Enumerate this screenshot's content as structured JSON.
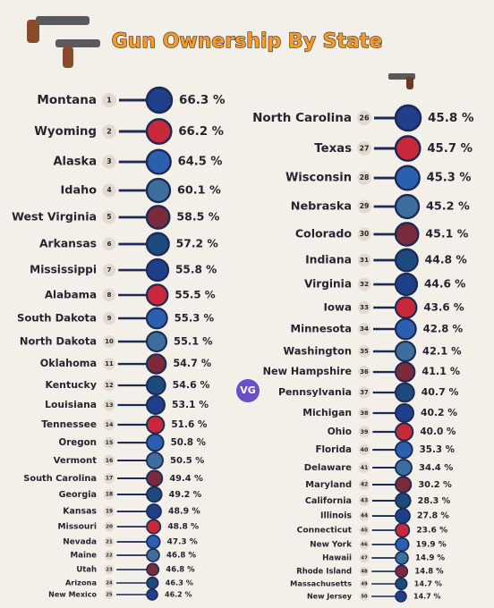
{
  "title": "Gun Ownership By State",
  "logo": "VG",
  "left": [
    {
      "name": "Montana",
      "rank": 1,
      "value": "66.3 %"
    },
    {
      "name": "Wyoming",
      "rank": 2,
      "value": "66.2 %"
    },
    {
      "name": "Alaska",
      "rank": 3,
      "value": "64.5 %"
    },
    {
      "name": "Idaho",
      "rank": 4,
      "value": "60.1 %"
    },
    {
      "name": "West Virginia",
      "rank": 5,
      "value": "58.5 %"
    },
    {
      "name": "Arkansas",
      "rank": 6,
      "value": "57.2 %"
    },
    {
      "name": "Mississippi",
      "rank": 7,
      "value": "55.8 %"
    },
    {
      "name": "Alabama",
      "rank": 8,
      "value": "55.5 %"
    },
    {
      "name": "South Dakota",
      "rank": 9,
      "value": "55.3 %"
    },
    {
      "name": "North Dakota",
      "rank": 10,
      "value": "55.1 %"
    },
    {
      "name": "Oklahoma",
      "rank": 11,
      "value": "54.7 %"
    },
    {
      "name": "Kentucky",
      "rank": 12,
      "value": "54.6 %"
    },
    {
      "name": "Louisiana",
      "rank": 13,
      "value": "53.1 %"
    },
    {
      "name": "Tennessee",
      "rank": 14,
      "value": "51.6 %"
    },
    {
      "name": "Oregon",
      "rank": 15,
      "value": "50.8 %"
    },
    {
      "name": "Vermont",
      "rank": 16,
      "value": "50.5 %"
    },
    {
      "name": "South Carolina",
      "rank": 17,
      "value": "49.4 %"
    },
    {
      "name": "Georgia",
      "rank": 18,
      "value": "49.2 %"
    },
    {
      "name": "Kansas",
      "rank": 19,
      "value": "48.9 %"
    },
    {
      "name": "Missouri",
      "rank": 20,
      "value": "48.8 %"
    },
    {
      "name": "Nevada",
      "rank": 21,
      "value": "47.3 %"
    },
    {
      "name": "Maine",
      "rank": 22,
      "value": "46.8 %"
    },
    {
      "name": "Utah",
      "rank": 23,
      "value": "46.8 %"
    },
    {
      "name": "Arizona",
      "rank": 24,
      "value": "46.3 %"
    },
    {
      "name": "New Mexico",
      "rank": 25,
      "value": "46.2 %"
    }
  ],
  "right": [
    {
      "name": "North Carolina",
      "rank": 26,
      "value": "45.8 %"
    },
    {
      "name": "Texas",
      "rank": 27,
      "value": "45.7 %"
    },
    {
      "name": "Wisconsin",
      "rank": 28,
      "value": "45.3 %"
    },
    {
      "name": "Nebraska",
      "rank": 29,
      "value": "45.2 %"
    },
    {
      "name": "Colorado",
      "rank": 30,
      "value": "45.1 %"
    },
    {
      "name": "Indiana",
      "rank": 31,
      "value": "44.8 %"
    },
    {
      "name": "Virginia",
      "rank": 32,
      "value": "44.6 %"
    },
    {
      "name": "Iowa",
      "rank": 33,
      "value": "43.6 %"
    },
    {
      "name": "Minnesota",
      "rank": 34,
      "value": "42.8 %"
    },
    {
      "name": "Washington",
      "rank": 35,
      "value": "42.1 %"
    },
    {
      "name": "New Hampshire",
      "rank": 36,
      "value": "41.1 %"
    },
    {
      "name": "Pennsylvania",
      "rank": 37,
      "value": "40.7 %"
    },
    {
      "name": "Michigan",
      "rank": 38,
      "value": "40.2 %"
    },
    {
      "name": "Ohio",
      "rank": 39,
      "value": "40.0 %"
    },
    {
      "name": "Florida",
      "rank": 40,
      "value": "35.3 %"
    },
    {
      "name": "Delaware",
      "rank": 41,
      "value": "34.4 %"
    },
    {
      "name": "Maryland",
      "rank": 42,
      "value": "30.2 %"
    },
    {
      "name": "California",
      "rank": 43,
      "value": "28.3 %"
    },
    {
      "name": "Illinois",
      "rank": 44,
      "value": "27.8 %"
    },
    {
      "name": "Connecticut",
      "rank": 45,
      "value": "23.6 %"
    },
    {
      "name": "New York",
      "rank": 46,
      "value": "19.9 %"
    },
    {
      "name": "Hawaii",
      "rank": 47,
      "value": "14.9 %"
    },
    {
      "name": "Rhode Island",
      "rank": 48,
      "value": "14.8 %"
    },
    {
      "name": "Massachusetts",
      "rank": 49,
      "value": "14.7 %"
    },
    {
      "name": "New Jersey",
      "rank": 50,
      "value": "14.7 %"
    }
  ]
}
